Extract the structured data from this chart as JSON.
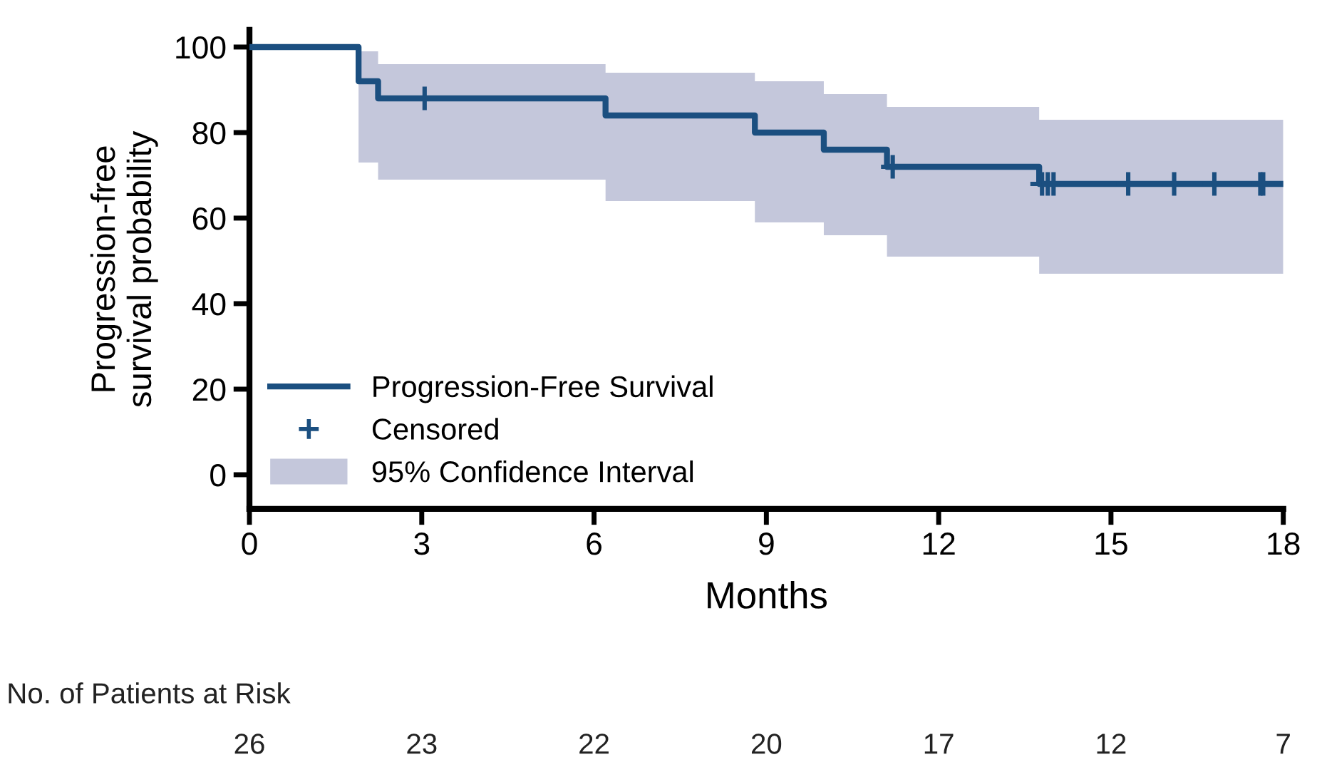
{
  "chart_data": {
    "type": "step",
    "xlabel": "Months",
    "ylabel": "Progression-free\nsurvival probability",
    "xlim": [
      0,
      18
    ],
    "xticks": [
      0,
      3,
      6,
      9,
      12,
      15,
      18
    ],
    "ylim": [
      -8,
      104
    ],
    "yticks": [
      0,
      20,
      40,
      60,
      80,
      100
    ],
    "grid": false,
    "legend": "bottom left",
    "series": [
      {
        "name": "Progression-Free Survival",
        "color": "#1b4f80",
        "x": [
          0,
          1.9,
          2.24,
          6.2,
          8.8,
          10.0,
          11.1,
          13.75,
          18
        ],
        "values": [
          100,
          92,
          88,
          84,
          80,
          76,
          72,
          68,
          68
        ],
        "lower": [
          100,
          73,
          69,
          64,
          59,
          56,
          51,
          47,
          47
        ],
        "upper": [
          100,
          99,
          96,
          94,
          92,
          89,
          86,
          83,
          83
        ]
      },
      {
        "type": "scatter",
        "name": "Censored",
        "color": "#1b4f80",
        "marker": "cross",
        "x": [
          3.05,
          11.2,
          13.8,
          13.9,
          14.0,
          15.3,
          16.1,
          16.8,
          17.6,
          17.65
        ],
        "values": [
          88,
          72,
          68,
          68,
          68,
          68,
          68,
          68,
          68,
          68
        ]
      }
    ],
    "annotations": [
      "95% Confidence Interval",
      "No. of Patients at Risk",
      "26",
      "23",
      "22",
      "20",
      "17",
      "12",
      "7"
    ]
  }
}
